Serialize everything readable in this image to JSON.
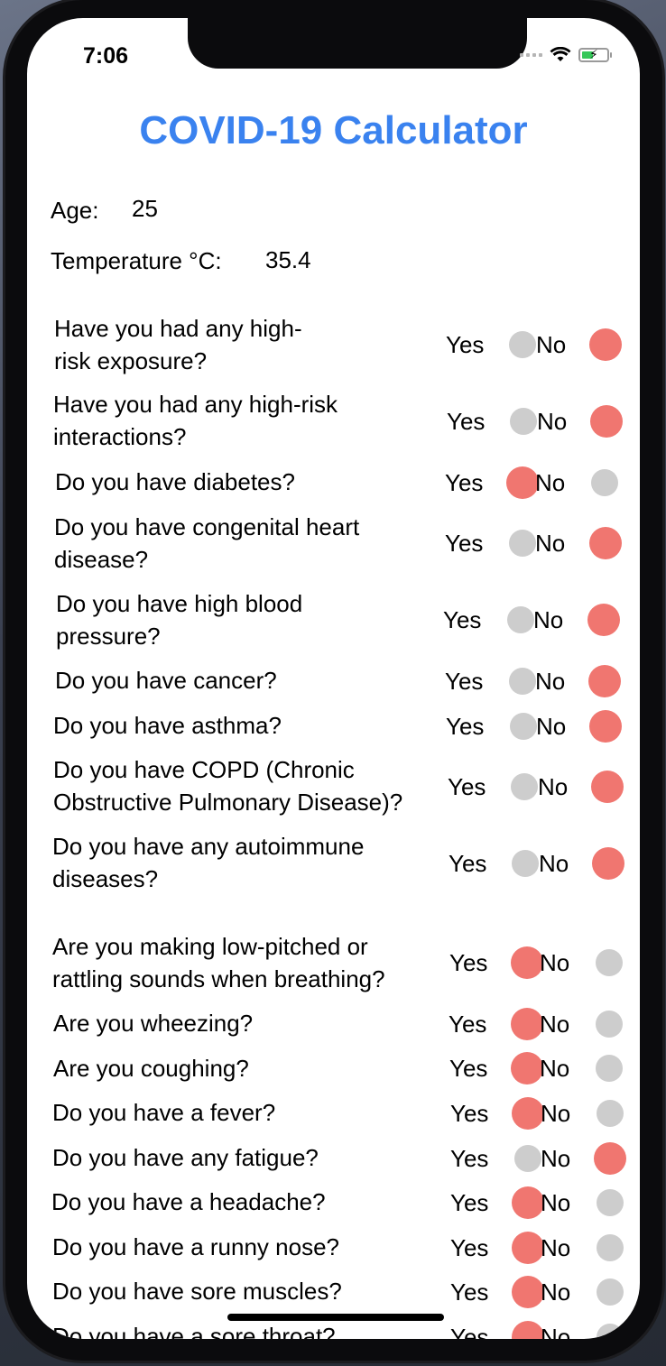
{
  "status_bar": {
    "time": "7:06"
  },
  "header": {
    "title": "COVID-19 Calculator"
  },
  "fields": {
    "age_label": "Age:",
    "age_value": "25",
    "temperature_label": "Temperature °C:",
    "temperature_value": "35.4"
  },
  "options": {
    "yes": "Yes",
    "no": "No"
  },
  "colors": {
    "accent": "#3a82ef",
    "selected": "#f07670",
    "unselected": "#cdcdcd"
  },
  "questions": [
    {
      "text": "Have you had any high-\nrisk exposure?",
      "answer": "No"
    },
    {
      "text": "Have you had any high-risk\ninteractions?",
      "answer": "No"
    },
    {
      "text": "Do you have diabetes?",
      "answer": "Yes"
    },
    {
      "text": "Do you have congenital heart\ndisease?",
      "answer": "No"
    },
    {
      "text": "Do you have high blood\npressure?",
      "answer": "No"
    },
    {
      "text": "Do you have cancer?",
      "answer": "No"
    },
    {
      "text": "Do you have asthma?",
      "answer": "No"
    },
    {
      "text": "Do you have COPD (Chronic\nObstructive Pulmonary Disease)?",
      "answer": "No"
    },
    {
      "text": "Do you have any autoimmune\ndiseases?",
      "answer": "No"
    },
    {
      "text": "Are you making low-pitched or\nrattling sounds when breathing?",
      "answer": "Yes"
    },
    {
      "text": "Are you wheezing?",
      "answer": "Yes"
    },
    {
      "text": "Are you coughing?",
      "answer": "Yes"
    },
    {
      "text": "Do you have a fever?",
      "answer": "Yes"
    },
    {
      "text": "Do you have any fatigue?",
      "answer": "No"
    },
    {
      "text": "Do you have a headache?",
      "answer": "Yes"
    },
    {
      "text": "Do you have a runny nose?",
      "answer": "Yes"
    },
    {
      "text": "Do you have sore muscles?",
      "answer": "Yes"
    },
    {
      "text": "Do you have a sore throat?",
      "answer": "Yes"
    }
  ]
}
